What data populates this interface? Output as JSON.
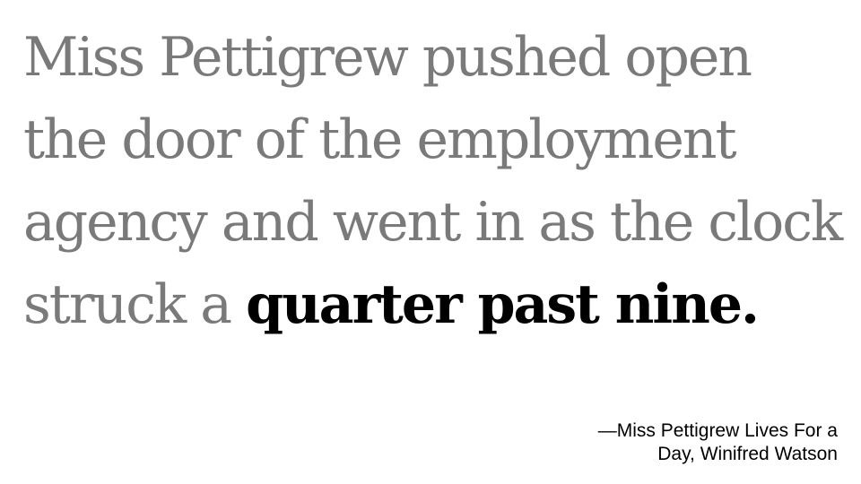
{
  "quote": {
    "lines": [
      "Miss Pettigrew pushed open",
      "the door of the employment",
      "agency and went in as the clock"
    ],
    "last_line_plain": "struck a ",
    "last_line_emphasis": "quarter past nine."
  },
  "attribution": {
    "line1": "—Miss Pettigrew Lives For a",
    "line2": "Day, Winifred Watson"
  },
  "colors": {
    "quote_text": "#7a7a7a",
    "emphasis_text": "#000000",
    "background": "#ffffff"
  }
}
